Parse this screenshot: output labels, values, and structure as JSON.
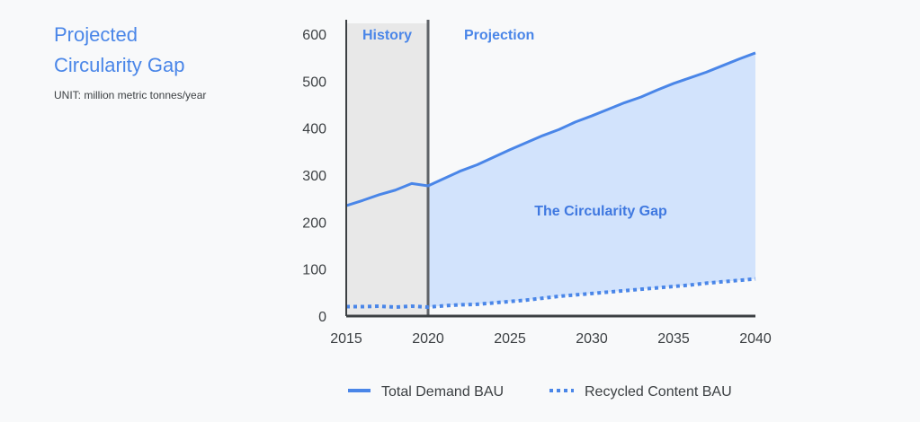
{
  "header": {
    "title_line1": "Projected",
    "title_line2": "Circularity Gap",
    "unit": "UNIT: million metric tonnes/year"
  },
  "colors": {
    "accent": "#4a86e8",
    "fill": "#d2e3fc",
    "history_bg": "#e8e8e8",
    "axis": "#3c4043"
  },
  "chart_data": {
    "type": "area",
    "xlim": [
      2015,
      2040
    ],
    "ylim": [
      0,
      600
    ],
    "x_ticks": [
      "2015",
      "2020",
      "2025",
      "2030",
      "2035",
      "2040"
    ],
    "y_ticks": [
      "0",
      "100",
      "200",
      "300",
      "400",
      "500",
      "600"
    ],
    "regions": [
      {
        "label": "History",
        "from": 2015,
        "to": 2020
      },
      {
        "label": "Projection",
        "from": 2020,
        "to": 2040
      }
    ],
    "annotation": "The Circularity Gap",
    "series": [
      {
        "name": "Total Demand BAU",
        "style": "solid",
        "x": [
          2015,
          2016,
          2017,
          2018,
          2019,
          2020,
          2021,
          2022,
          2023,
          2024,
          2025,
          2026,
          2027,
          2028,
          2029,
          2030,
          2031,
          2032,
          2033,
          2034,
          2035,
          2036,
          2037,
          2038,
          2039,
          2040
        ],
        "values": [
          235,
          246,
          258,
          268,
          282,
          277,
          293,
          309,
          322,
          338,
          354,
          369,
          384,
          397,
          413,
          426,
          440,
          454,
          466,
          481,
          495,
          507,
          519,
          533,
          547,
          560
        ]
      },
      {
        "name": "Recycled Content BAU",
        "style": "dotted",
        "x": [
          2015,
          2016,
          2017,
          2018,
          2019,
          2020,
          2021,
          2022,
          2023,
          2024,
          2025,
          2026,
          2027,
          2028,
          2029,
          2030,
          2031,
          2032,
          2033,
          2034,
          2035,
          2036,
          2037,
          2038,
          2039,
          2040
        ],
        "values": [
          20,
          20,
          21,
          19,
          21,
          19,
          22,
          24,
          25,
          28,
          31,
          34,
          38,
          42,
          45,
          48,
          51,
          54,
          57,
          60,
          63,
          66,
          70,
          73,
          76,
          79
        ]
      }
    ]
  }
}
